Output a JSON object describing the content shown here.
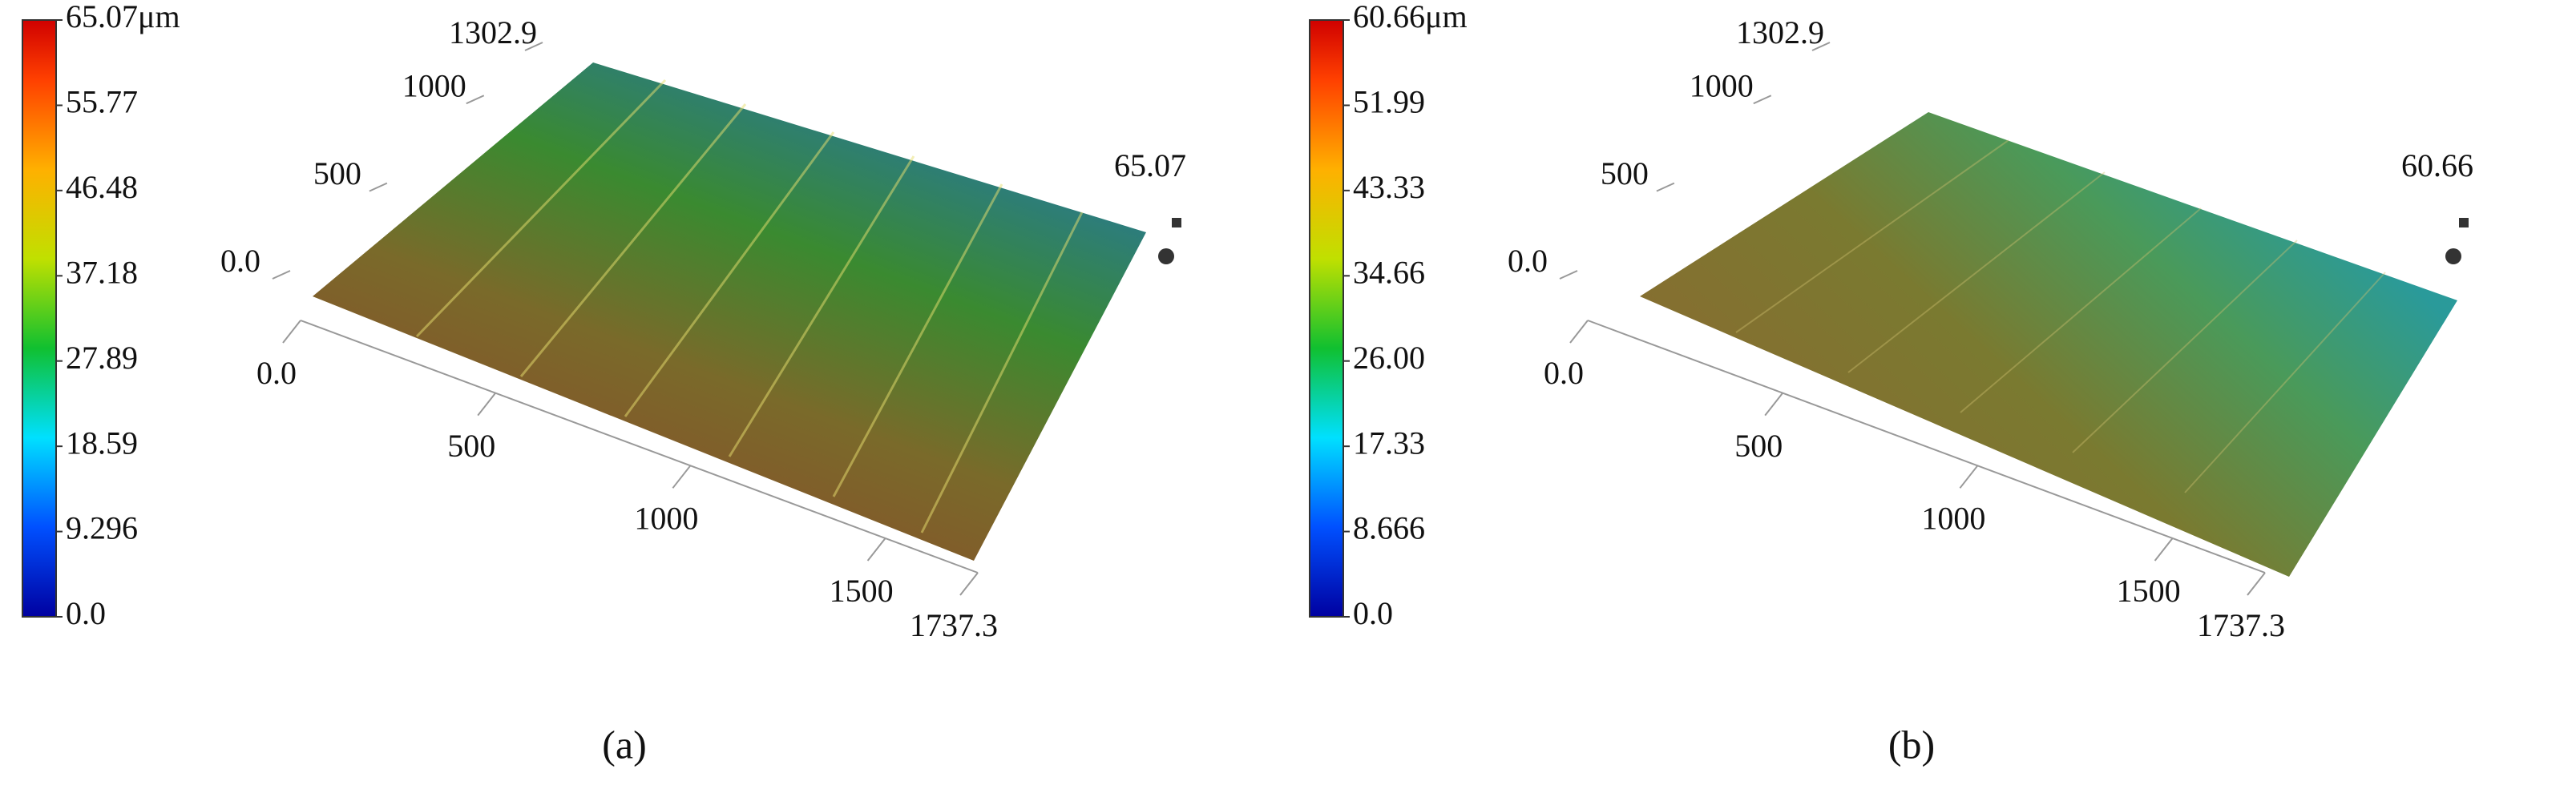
{
  "chart_data": [
    {
      "type": "surface",
      "caption": "(a)",
      "zmax_label": "65.07",
      "clim": [
        0,
        65.07
      ],
      "cticks": [
        {
          "value": 0,
          "label": "0.0"
        },
        9.296,
        18.59,
        27.89,
        37.18,
        46.48,
        55.77,
        {
          "value": 65.07,
          "label": "65.07μm"
        }
      ],
      "xlim": [
        0,
        1737.3
      ],
      "xticks": [
        {
          "value": 0,
          "label": "0.0"
        },
        500,
        1000,
        1500,
        1737.3
      ],
      "ylim": [
        0,
        1302.9
      ],
      "yticks": [
        {
          "value": 0,
          "label": "0.0"
        },
        500,
        1000,
        1302.9
      ]
    },
    {
      "type": "surface",
      "caption": "(b)",
      "zmax_label": "60.66",
      "clim": [
        0,
        60.66
      ],
      "cticks": [
        {
          "value": 0,
          "label": "0.0"
        },
        8.666,
        17.33,
        {
          "value": 26,
          "label": "26.00"
        },
        34.66,
        43.33,
        51.99,
        {
          "value": 60.66,
          "label": "60.66μm"
        }
      ],
      "xlim": [
        0,
        1737.3
      ],
      "xticks": [
        {
          "value": 0,
          "label": "0.0"
        },
        500,
        1000,
        1500,
        1737.3
      ],
      "ylim": [
        0,
        1302.9
      ],
      "yticks": [
        {
          "value": 0,
          "label": "0.0"
        },
        500,
        1000,
        1302.9
      ]
    }
  ]
}
